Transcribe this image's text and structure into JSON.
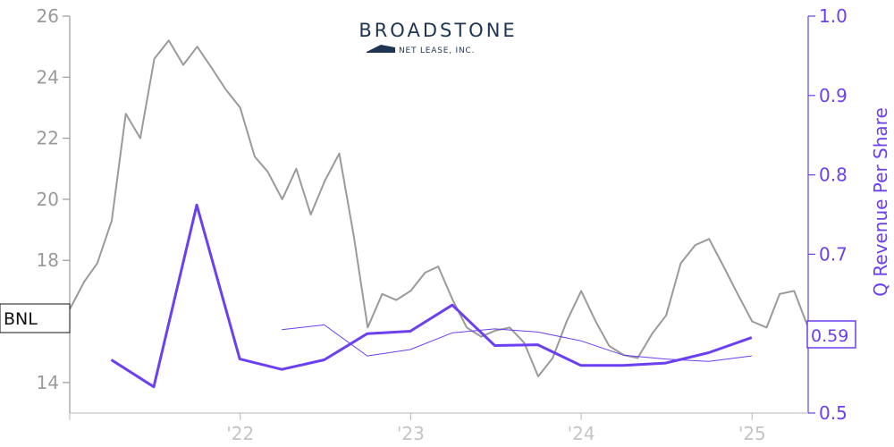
{
  "logo": {
    "name": "BROADSTONE",
    "subtitle": "NET LEASE, INC.",
    "color": "#1f3452"
  },
  "ticker": "BNL",
  "last_value_label": "0.59",
  "colors": {
    "price": "#9a9a9a",
    "revenue": "#6c3ff0",
    "left_axis": "#9a9a9a",
    "right_axis": "#6c3ff0",
    "x_labels": "#c4c4c4"
  },
  "chart_data": [
    {
      "type": "line",
      "axis": "left",
      "title": "",
      "xlabel": "",
      "ylabel": "",
      "ylim": [
        13,
        26
      ],
      "yticks": [
        14,
        16,
        18,
        20,
        22,
        24,
        26
      ],
      "yticklabels": [
        "14",
        "",
        "18",
        "20",
        "22",
        "24",
        "26"
      ],
      "x_range": [
        "2021-01",
        "2025-05"
      ],
      "xticks": [
        "2022-01",
        "2023-01",
        "2024-01",
        "2025-01"
      ],
      "xticklabels": [
        "'22",
        "'23",
        "'24",
        "'25"
      ],
      "series": [
        {
          "x": [
            "2021-01",
            "2021-02",
            "2021-03",
            "2021-04",
            "2021-05",
            "2021-06",
            "2021-07",
            "2021-08",
            "2021-09",
            "2021-10",
            "2021-11",
            "2021-12",
            "2022-01",
            "2022-02",
            "2022-03",
            "2022-04",
            "2022-05",
            "2022-06",
            "2022-07",
            "2022-08",
            "2022-09",
            "2022-10",
            "2022-11",
            "2022-12",
            "2023-01",
            "2023-02",
            "2023-03",
            "2023-04",
            "2023-05",
            "2023-06",
            "2023-07",
            "2023-08",
            "2023-09",
            "2023-10",
            "2023-11",
            "2023-12",
            "2024-01",
            "2024-02",
            "2024-03",
            "2024-04",
            "2024-05",
            "2024-06",
            "2024-07",
            "2024-08",
            "2024-09",
            "2024-10",
            "2024-11",
            "2024-12",
            "2025-01",
            "2025-02",
            "2025-03",
            "2025-04",
            "2025-05"
          ],
          "y": [
            16.4,
            17.3,
            17.9,
            19.3,
            22.8,
            22.0,
            24.6,
            25.2,
            24.4,
            25.0,
            24.3,
            23.6,
            23.0,
            21.4,
            20.9,
            20.0,
            21.0,
            19.5,
            20.6,
            21.5,
            18.8,
            15.8,
            16.9,
            16.7,
            17.0,
            17.6,
            17.8,
            16.7,
            15.8,
            15.5,
            15.7,
            15.8,
            15.3,
            14.2,
            14.8,
            16.0,
            17.0,
            16.0,
            15.2,
            14.9,
            14.8,
            15.6,
            16.2,
            17.9,
            18.5,
            18.7,
            17.8,
            16.9,
            16.0,
            15.8,
            16.9,
            17.0,
            15.8
          ]
        }
      ]
    },
    {
      "type": "line",
      "axis": "right",
      "title": "",
      "xlabel": "",
      "ylabel": "Q Revenue Per Share",
      "ylim": [
        0.5,
        1.0
      ],
      "yticks": [
        0.5,
        0.6,
        0.7,
        0.8,
        0.9,
        1.0
      ],
      "yticklabels": [
        "0.5",
        "",
        "0.7",
        "0.8",
        "0.9",
        "1.0"
      ],
      "series": [
        {
          "x": [
            "2021-03-31",
            "2021-06-30",
            "2021-09-30",
            "2021-12-31",
            "2022-03-31",
            "2022-06-30",
            "2022-09-30",
            "2022-12-31",
            "2023-03-31",
            "2023-06-30",
            "2023-09-30",
            "2023-12-31",
            "2024-03-31",
            "2024-06-30",
            "2024-09-30",
            "2024-12-31"
          ],
          "y": [
            0.567,
            0.533,
            0.762,
            0.568,
            0.555,
            0.567,
            0.6,
            0.603,
            0.636,
            0.585,
            0.586,
            0.56,
            0.56,
            0.563,
            0.576,
            0.595
          ]
        },
        {
          "x": [
            "2022-03-31",
            "2022-06-30",
            "2022-09-30",
            "2022-12-31",
            "2023-03-31",
            "2023-06-30",
            "2023-09-30",
            "2023-12-31",
            "2024-03-31",
            "2024-06-30",
            "2024-09-30",
            "2024-12-31"
          ],
          "y": [
            0.605,
            0.611,
            0.572,
            0.58,
            0.601,
            0.606,
            0.602,
            0.591,
            0.573,
            0.568,
            0.565,
            0.572
          ]
        }
      ]
    }
  ]
}
